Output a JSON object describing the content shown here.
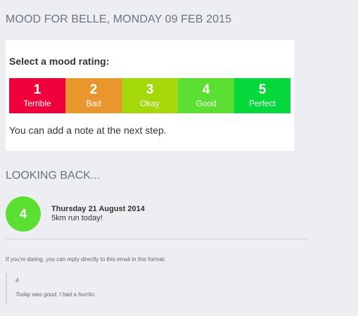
{
  "header": {
    "title": "MOOD FOR BELLE, MONDAY 09 FEB 2015"
  },
  "rating_card": {
    "heading": "Select a mood rating:",
    "options": [
      {
        "value": "1",
        "label": "Terrible",
        "color": "#f0003c"
      },
      {
        "value": "2",
        "label": "Bad",
        "color": "#e9962e"
      },
      {
        "value": "3",
        "label": "Okay",
        "color": "#a4d80a"
      },
      {
        "value": "4",
        "label": "Good",
        "color": "#5bdf32"
      },
      {
        "value": "5",
        "label": "Perfect",
        "color": "#04d83a"
      }
    ],
    "note": "You can add a note at the next step."
  },
  "looking_back": {
    "title": "LOOKING BACK...",
    "entry": {
      "rating": "4",
      "color": "#5bdf32",
      "date": "Thursday 21 August 2014",
      "note": "5km run today!"
    }
  },
  "footer": {
    "hint": "If you're daring, you can reply directly to this email in this format:",
    "example_rating": "4",
    "example_note": "Today was good, I had a burrito."
  }
}
